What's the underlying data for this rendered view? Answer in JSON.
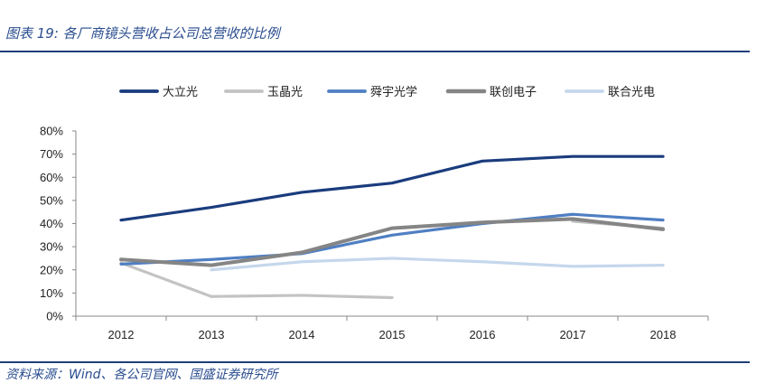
{
  "header": {
    "title": "图表 19:  各厂商镜头营收占公司总营收的比例"
  },
  "footer": {
    "source": "资料来源：Wind、各公司官网、国盛证券研究所"
  },
  "chart_data": {
    "type": "line",
    "x": [
      "2012",
      "2013",
      "2014",
      "2015",
      "2016",
      "2017",
      "2018"
    ],
    "y_ticks": [
      "0%",
      "10%",
      "20%",
      "30%",
      "40%",
      "50%",
      "60%",
      "70%",
      "80%"
    ],
    "ylim": [
      0,
      80
    ],
    "grid": false,
    "legend_position": "top",
    "series": [
      {
        "name": "大立光",
        "color": "#1a3c7d",
        "width": 3.2,
        "values": [
          41.5,
          47,
          53.5,
          57.5,
          67,
          69,
          69
        ]
      },
      {
        "name": "玉晶光",
        "color": "#c3c3c3",
        "width": 3.2,
        "values": [
          23,
          8.5,
          9,
          8,
          null,
          41,
          38
        ]
      },
      {
        "name": "舜宇光学",
        "color": "#4f7fc3",
        "width": 3.2,
        "values": [
          22.5,
          24.5,
          27,
          35,
          40,
          44,
          41.5
        ]
      },
      {
        "name": "联创电子",
        "color": "#858585",
        "width": 4,
        "values": [
          24.5,
          22,
          27.5,
          38,
          40.5,
          42,
          37.5
        ]
      },
      {
        "name": "联合光电",
        "color": "#c5d7ec",
        "width": 3.2,
        "values": [
          null,
          20,
          23.5,
          25,
          23.5,
          21.5,
          22
        ]
      }
    ]
  }
}
